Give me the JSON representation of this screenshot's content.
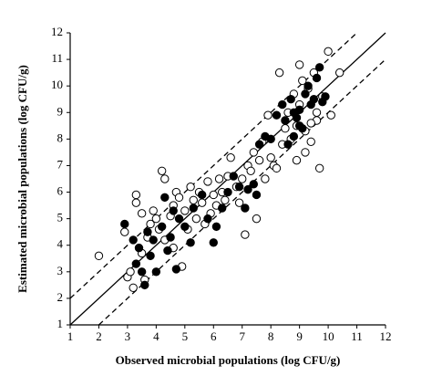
{
  "chart_data": {
    "type": "scatter",
    "x_label": "Observed microbial populations (log CFU/g)",
    "y_label": "Estimated microbial populations (log CFU/g)",
    "xlim": [
      1,
      12
    ],
    "ylim": [
      1,
      12
    ],
    "xticks": [
      1,
      2,
      3,
      4,
      5,
      6,
      7,
      8,
      9,
      10,
      11,
      12
    ],
    "yticks": [
      1,
      2,
      3,
      4,
      5,
      6,
      7,
      8,
      9,
      10,
      11,
      12
    ],
    "reference_lines": [
      {
        "offset": 0,
        "style": "solid"
      },
      {
        "offset": 1,
        "style": "dashed"
      },
      {
        "offset": -1,
        "style": "dashed"
      }
    ],
    "series": [
      {
        "color": "#000000",
        "marker": "open",
        "x": [
          2,
          2.9,
          3,
          3.1,
          3.2,
          3.3,
          3.3,
          3.5,
          3.5,
          3.6,
          3.7,
          3.8,
          3.9,
          4.0,
          4.1,
          4.2,
          4.3,
          4.3,
          4.5,
          4.6,
          4.6,
          4.7,
          4.8,
          4.9,
          5.0,
          5.1,
          5.2,
          5.3,
          5.4,
          5.5,
          5.6,
          5.7,
          5.8,
          5.9,
          6.0,
          6.1,
          6.2,
          6.3,
          6.4,
          6.5,
          6.6,
          6.8,
          6.9,
          7.0,
          7.1,
          7.2,
          7.3,
          7.4,
          7.5,
          7.6,
          7.7,
          7.8,
          7.9,
          8.0,
          8.1,
          8.2,
          8.3,
          8.4,
          8.5,
          8.6,
          8.7,
          8.8,
          8.9,
          9.0,
          9.0,
          9.1,
          9.2,
          9.3,
          9.4,
          9.5,
          9.6,
          9.7,
          9.8,
          10.0,
          10.1,
          10.4,
          9.2,
          8.9,
          9.4,
          9.6
        ],
        "values": [
          3.6,
          4.5,
          2.8,
          3.0,
          2.4,
          5.9,
          5.6,
          5.2,
          3.7,
          2.7,
          4.3,
          4.8,
          5.3,
          5.0,
          4.6,
          6.8,
          6.5,
          4.2,
          5.1,
          5.5,
          3.9,
          6.0,
          5.8,
          3.2,
          5.3,
          4.6,
          6.2,
          5.7,
          5.0,
          6.0,
          5.6,
          4.8,
          6.4,
          5.2,
          5.9,
          5.5,
          6.5,
          6.0,
          5.7,
          6.6,
          7.3,
          6.2,
          5.6,
          6.5,
          4.4,
          7.0,
          6.8,
          7.5,
          5.0,
          7.2,
          7.9,
          6.5,
          8.9,
          7.3,
          7.0,
          6.9,
          10.5,
          7.8,
          8.4,
          9.0,
          8.0,
          9.7,
          8.5,
          10.8,
          9.3,
          10.2,
          8.3,
          9.9,
          7.9,
          10.5,
          8.7,
          6.9,
          9.6,
          11.3,
          8.9,
          10.5,
          7.5,
          7.2,
          8.6,
          9.0
        ]
      },
      {
        "color": "#000000",
        "marker": "filled",
        "x": [
          2.9,
          3.2,
          3.3,
          3.4,
          3.5,
          3.6,
          3.7,
          3.8,
          3.9,
          4.0,
          4.2,
          4.3,
          4.4,
          4.5,
          4.6,
          4.7,
          4.8,
          5.0,
          5.2,
          5.3,
          5.6,
          5.8,
          6.0,
          6.1,
          6.3,
          6.5,
          6.7,
          6.9,
          7.1,
          7.2,
          7.4,
          7.5,
          7.6,
          7.8,
          8.0,
          8.2,
          8.4,
          8.5,
          8.6,
          8.7,
          8.8,
          8.9,
          9.0,
          9.1,
          9.2,
          9.3,
          9.4,
          9.5,
          9.6,
          9.7,
          9.8,
          9.9,
          9.0,
          8.8
        ],
        "values": [
          4.8,
          4.2,
          3.3,
          3.9,
          3.0,
          2.5,
          4.5,
          3.6,
          4.2,
          3.0,
          4.7,
          5.8,
          3.8,
          4.3,
          5.3,
          3.1,
          5.0,
          4.7,
          4.1,
          5.4,
          5.9,
          5.0,
          4.1,
          4.7,
          5.4,
          6.0,
          6.6,
          6.2,
          5.4,
          6.1,
          6.3,
          5.9,
          7.8,
          8.1,
          8.0,
          8.9,
          9.3,
          8.7,
          7.8,
          9.5,
          8.1,
          8.8,
          9.1,
          8.4,
          9.7,
          10.0,
          9.3,
          9.5,
          10.3,
          10.7,
          9.4,
          9.6,
          8.5,
          9.0
        ]
      }
    ]
  }
}
